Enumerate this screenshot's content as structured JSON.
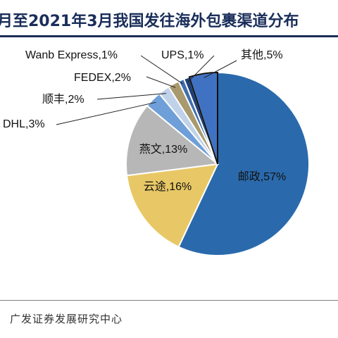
{
  "title": "月至2021年3月我国发往海外包裹渠道分布",
  "source": "广发证券发展研究中心",
  "chart_data": {
    "type": "pie",
    "title": "月至2021年3月我国发往海外包裹渠道分布",
    "slices": [
      {
        "label": "邮政",
        "value": 57,
        "text": "邮政,57%",
        "color": "#2a6aac"
      },
      {
        "label": "云途",
        "value": 16,
        "text": "云途,16%",
        "color": "#e8c866"
      },
      {
        "label": "燕文",
        "value": 13,
        "text": "燕文,13%",
        "color": "#b7b7b7"
      },
      {
        "label": "DHL",
        "value": 3,
        "text": "DHL,3%",
        "color": "#6f9fd8"
      },
      {
        "label": "顺丰",
        "value": 2,
        "text": "顺丰,2%",
        "color": "#bfd2ea"
      },
      {
        "label": "FEDEX",
        "value": 2,
        "text": "FEDEX,2%",
        "color": "#a89a6e"
      },
      {
        "label": "Wanb Express",
        "value": 1,
        "text": "Wanb Express,1%",
        "color": "#3f6fb0"
      },
      {
        "label": "UPS",
        "value": 1,
        "text": "UPS,1%",
        "color": "#1f3f7a"
      },
      {
        "label": "其他",
        "value": 5,
        "text": "其他,5%",
        "color": "#3f72c2"
      }
    ],
    "legend": "none"
  }
}
